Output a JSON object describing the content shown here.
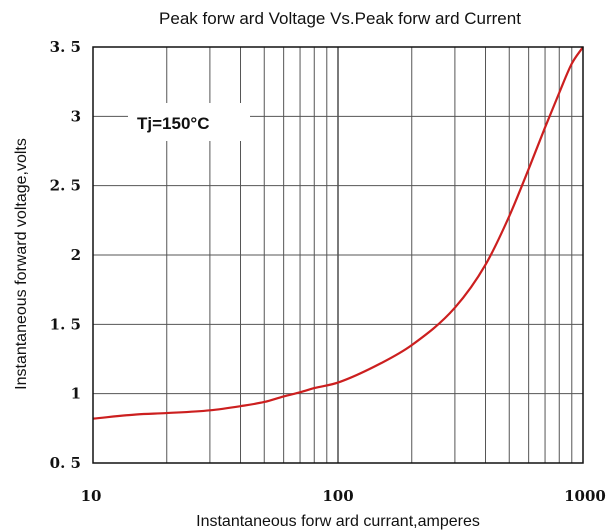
{
  "chart_data": {
    "type": "line",
    "title": "Peak forw ard Voltage Vs.Peak forw ard Current",
    "xlabel": "Instantaneous forw ard currant,amperes",
    "ylabel": "Instantaneous forward voltage,volts",
    "x_scale": "log",
    "xlim": [
      10,
      1000
    ],
    "ylim": [
      0.5,
      3.5
    ],
    "x_ticks": [
      10,
      100,
      1000
    ],
    "x_tick_labels": [
      "10",
      "100",
      "1000"
    ],
    "y_ticks": [
      0.5,
      1,
      1.5,
      2,
      2.5,
      3,
      3.5
    ],
    "y_tick_labels": [
      "0. 5",
      "1",
      "1. 5",
      "2",
      "2. 5",
      "3",
      "3. 5"
    ],
    "grid": true,
    "annotation": "Tj=150°C",
    "series": [
      {
        "color": "#cc1f1f",
        "x": [
          10,
          15,
          20,
          30,
          40,
          50,
          60,
          70,
          80,
          100,
          150,
          200,
          300,
          400,
          500,
          600,
          700,
          800,
          900,
          1000
        ],
        "y": [
          0.82,
          0.85,
          0.86,
          0.88,
          0.91,
          0.94,
          0.98,
          1.01,
          1.04,
          1.08,
          1.22,
          1.35,
          1.62,
          1.93,
          2.28,
          2.62,
          2.92,
          3.17,
          3.38,
          3.5
        ]
      }
    ]
  }
}
